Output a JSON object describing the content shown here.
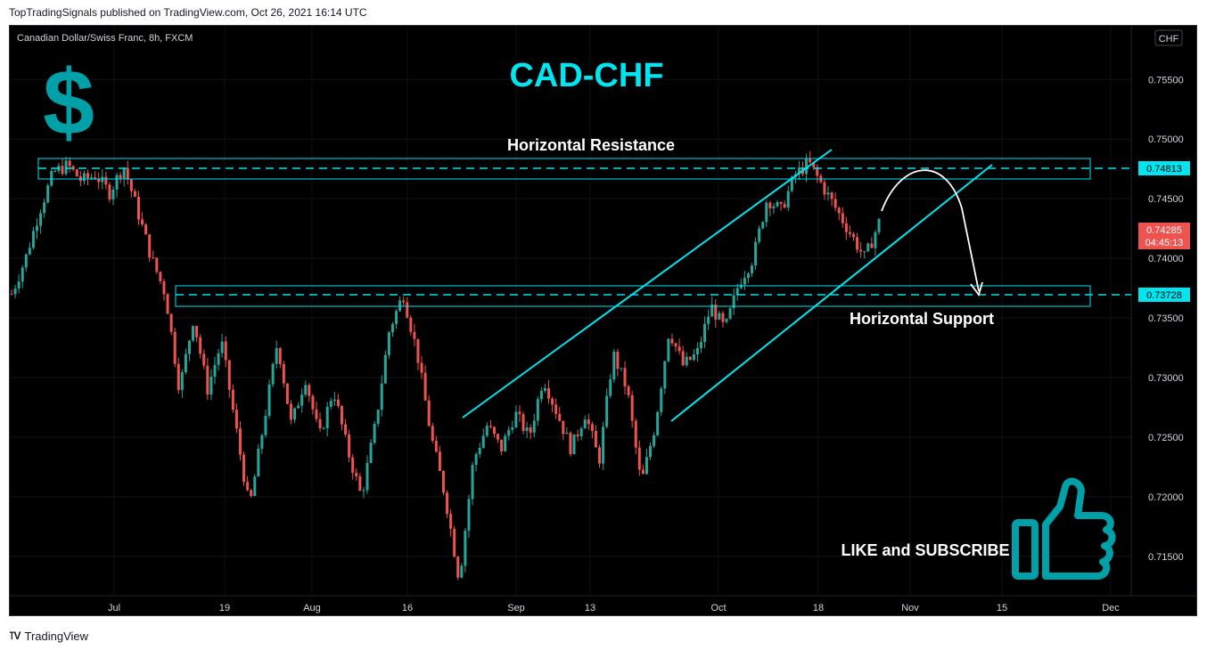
{
  "header": {
    "publish_line": "TopTradingSignals published on TradingView.com, Oct 26, 2021 16:14 UTC"
  },
  "chart": {
    "symbol_line": "Canadian Dollar/Swiss Franc, 8h, FXCM",
    "currency_badge": "CHF",
    "title": "CAD-CHF",
    "dollar_glyph": "$",
    "resistance_label": "Horizontal Resistance",
    "support_label": "Horizontal Support",
    "cta_label": "LIKE and SUBSCRIBE",
    "resistance_price": "0.74813",
    "support_price": "0.73728",
    "last_price": "0.74285",
    "countdown": "04:45:13",
    "thumb_icon": "thumbs-up-icon",
    "colors": {
      "accent": "#00e5f0",
      "teal_icon": "#00a0a8",
      "up": "#26a69a",
      "down": "#ef5350",
      "last_price_bg": "#ef5350",
      "level_tag_bg": "#00e5f0"
    }
  },
  "chart_data": {
    "type": "candlestick",
    "title": "CAD-CHF",
    "symbol": "Canadian Dollar/Swiss Franc, 8h, FXCM",
    "y_ticks": [
      "0.75500",
      "0.75000",
      "0.74500",
      "0.74000",
      "0.73500",
      "0.73000",
      "0.72500",
      "0.72000",
      "0.71500"
    ],
    "x_ticks": [
      "Jul",
      "19",
      "Aug",
      "16",
      "Sep",
      "13",
      "Oct",
      "18",
      "Nov",
      "15",
      "Dec"
    ],
    "ylim": [
      0.7117,
      0.7595
    ],
    "levels": [
      {
        "name": "Horizontal Resistance",
        "price": 0.74813
      },
      {
        "name": "Horizontal Support",
        "price": 0.73728
      }
    ],
    "last_price": 0.74285,
    "close_path": [
      0.737,
      0.74,
      0.744,
      0.7472,
      0.7478,
      0.7465,
      0.747,
      0.7455,
      0.7478,
      0.744,
      0.74,
      0.737,
      0.729,
      0.735,
      0.729,
      0.733,
      0.726,
      0.719,
      0.726,
      0.733,
      0.726,
      0.73,
      0.725,
      0.729,
      0.724,
      0.72,
      0.726,
      0.734,
      0.737,
      0.732,
      0.725,
      0.72,
      0.713,
      0.723,
      0.726,
      0.724,
      0.727,
      0.725,
      0.73,
      0.727,
      0.724,
      0.727,
      0.723,
      0.732,
      0.729,
      0.721,
      0.726,
      0.734,
      0.731,
      0.732,
      0.736,
      0.734,
      0.738,
      0.74,
      0.745,
      0.744,
      0.747,
      0.748,
      0.746,
      0.744,
      0.742,
      0.74,
      0.743
    ]
  }
}
